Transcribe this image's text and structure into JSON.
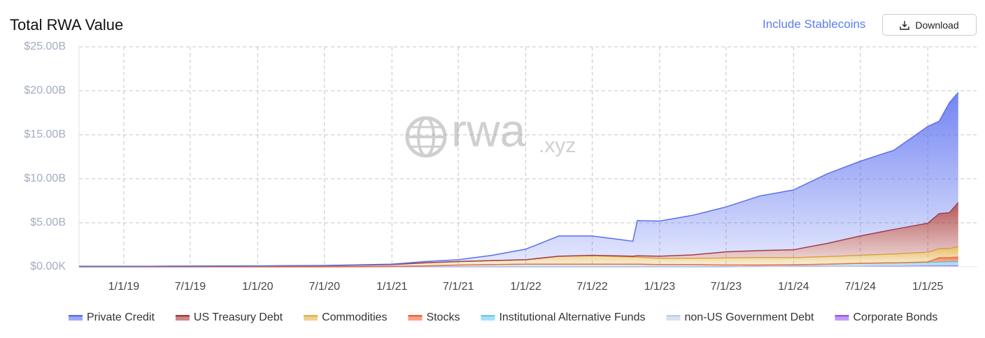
{
  "controls": {
    "toggle": "Include Stablecoins",
    "download": "Download"
  },
  "chart_data": {
    "type": "stacked-area",
    "title": "Total RWA Value",
    "watermark": {
      "main": "rwa",
      "suffix": ".xyz"
    },
    "x": [
      "2018-09-01",
      "2019-01-01",
      "2019-07-01",
      "2020-01-01",
      "2020-07-01",
      "2021-01-01",
      "2021-04-01",
      "2021-07-01",
      "2021-10-01",
      "2022-01-01",
      "2022-04-01",
      "2022-07-01",
      "2022-10-20",
      "2022-11-01",
      "2023-01-01",
      "2023-04-01",
      "2023-07-01",
      "2023-10-01",
      "2024-01-01",
      "2024-04-01",
      "2024-07-01",
      "2024-10-01",
      "2025-01-01",
      "2025-02-01",
      "2025-03-01",
      "2025-03-25"
    ],
    "xlim": [
      "2018-09-01",
      "2025-05-16"
    ],
    "xticks": [
      {
        "value": "2019-01-01",
        "label": "1/1/19"
      },
      {
        "value": "2019-07-01",
        "label": "7/1/19"
      },
      {
        "value": "2020-01-01",
        "label": "1/1/20"
      },
      {
        "value": "2020-07-01",
        "label": "7/1/20"
      },
      {
        "value": "2021-01-01",
        "label": "1/1/21"
      },
      {
        "value": "2021-07-01",
        "label": "7/1/21"
      },
      {
        "value": "2022-01-01",
        "label": "1/1/22"
      },
      {
        "value": "2022-07-01",
        "label": "7/1/22"
      },
      {
        "value": "2023-01-01",
        "label": "1/1/23"
      },
      {
        "value": "2023-07-01",
        "label": "7/1/23"
      },
      {
        "value": "2024-01-01",
        "label": "1/1/24"
      },
      {
        "value": "2024-07-01",
        "label": "7/1/24"
      },
      {
        "value": "2025-01-01",
        "label": "1/1/25"
      }
    ],
    "ylim": [
      0,
      25
    ],
    "yticks": [
      {
        "value": 0,
        "label": "$0.00K"
      },
      {
        "value": 5,
        "label": "$5.00B"
      },
      {
        "value": 10,
        "label": "$10.00B"
      },
      {
        "value": 15,
        "label": "$15.00B"
      },
      {
        "value": 20,
        "label": "$20.00B"
      },
      {
        "value": 25,
        "label": "$25.00B"
      }
    ],
    "grid": true,
    "legend": "bottom",
    "series": [
      {
        "name": "Private Credit",
        "color": "#5a6ff0",
        "values": [
          0,
          0,
          0,
          0,
          0.03,
          0.05,
          0.15,
          0.2,
          0.6,
          1.2,
          2.3,
          2.2,
          1.7,
          4.0,
          4.0,
          4.5,
          5.1,
          6.2,
          6.8,
          7.9,
          8.5,
          9.0,
          11.0,
          10.5,
          12.5,
          12.5
        ]
      },
      {
        "name": "US Treasury Debt",
        "color": "#a83a3a",
        "values": [
          0,
          0,
          0,
          0,
          0,
          0,
          0,
          0,
          0,
          0,
          0,
          0.05,
          0.1,
          0.15,
          0.25,
          0.4,
          0.7,
          0.8,
          0.9,
          1.5,
          2.2,
          2.8,
          3.3,
          4.0,
          4.1,
          5.0
        ]
      },
      {
        "name": "Commodities",
        "color": "#e3b24a",
        "values": [
          0.05,
          0.05,
          0.07,
          0.1,
          0.12,
          0.2,
          0.35,
          0.4,
          0.45,
          0.5,
          0.9,
          0.95,
          0.8,
          0.8,
          0.7,
          0.7,
          0.8,
          0.85,
          0.8,
          0.85,
          0.9,
          1.0,
          1.1,
          1.0,
          1.0,
          1.2
        ]
      },
      {
        "name": "Stocks",
        "color": "#f0653a",
        "values": [
          0,
          0,
          0,
          0,
          0,
          0,
          0,
          0,
          0,
          0,
          0,
          0,
          0,
          0,
          0,
          0,
          0,
          0,
          0,
          0,
          0,
          0.01,
          0.02,
          0.5,
          0.45,
          0.5
        ]
      },
      {
        "name": "Institutional Alternative Funds",
        "color": "#6ccdee",
        "values": [
          0,
          0,
          0,
          0,
          0,
          0.05,
          0.1,
          0.2,
          0.25,
          0.3,
          0.3,
          0.3,
          0.3,
          0.3,
          0.25,
          0.25,
          0.2,
          0.15,
          0.15,
          0.2,
          0.3,
          0.3,
          0.35,
          0.35,
          0.4,
          0.4
        ]
      },
      {
        "name": "non-US Government Debt",
        "color": "#c3cde6",
        "values": [
          0,
          0,
          0,
          0,
          0,
          0,
          0,
          0,
          0,
          0,
          0,
          0,
          0,
          0,
          0,
          0,
          0,
          0,
          0,
          0,
          0,
          0.02,
          0.03,
          0.04,
          0.05,
          0.05
        ]
      },
      {
        "name": "Corporate Bonds",
        "color": "#9a5af0",
        "values": [
          0,
          0,
          0,
          0,
          0,
          0,
          0,
          0,
          0,
          0,
          0,
          0,
          0,
          0,
          0,
          0,
          0,
          0.05,
          0.08,
          0.1,
          0.1,
          0.12,
          0.15,
          0.15,
          0.15,
          0.15
        ]
      }
    ]
  }
}
